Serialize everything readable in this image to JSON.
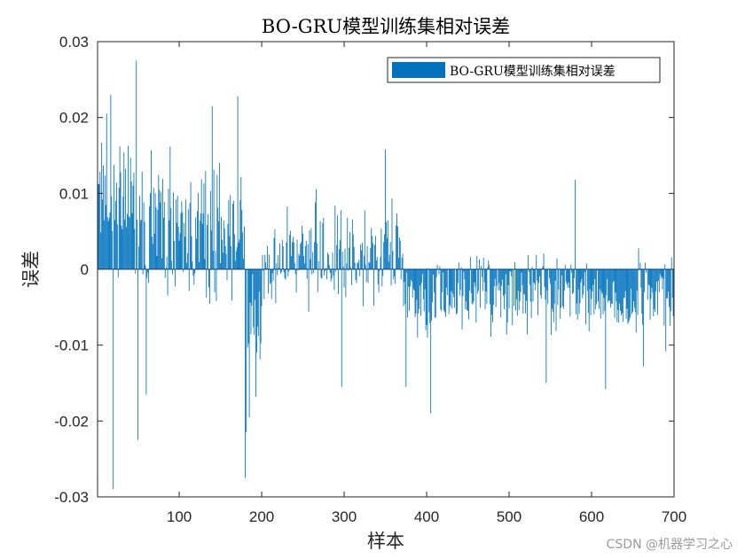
{
  "chart_data": {
    "type": "bar",
    "title": "BO-GRU模型训练集相对误差",
    "xlabel": "样本",
    "ylabel": "误差",
    "xlim": [
      1,
      700
    ],
    "ylim": [
      -0.03,
      0.03
    ],
    "xticks": [
      100,
      200,
      300,
      400,
      500,
      600,
      700
    ],
    "xtick_labels": [
      "100",
      "200",
      "300",
      "400",
      "500",
      "600",
      "700"
    ],
    "yticks": [
      -0.03,
      -0.02,
      -0.01,
      0,
      0.01,
      0.02,
      0.03
    ],
    "ytick_labels": [
      "-0.03",
      "-0.02",
      "-0.01",
      "0",
      "0.01",
      "0.02",
      "0.03"
    ],
    "legend": {
      "entries": [
        "BO-GRU模型训练集相对误差"
      ],
      "location": "top-right"
    },
    "bar_color": "#0072BD",
    "grid": false,
    "n_samples": 700,
    "series": [
      {
        "name": "BO-GRU模型训练集相对误差",
        "segments": [
          {
            "from": 1,
            "to": 45,
            "mean": 0.009,
            "spread": 0.011
          },
          {
            "from": 46,
            "to": 180,
            "mean": 0.005,
            "spread": 0.013
          },
          {
            "from": 181,
            "to": 200,
            "mean": -0.006,
            "spread": 0.012
          },
          {
            "from": 201,
            "to": 370,
            "mean": 0.002,
            "spread": 0.009
          },
          {
            "from": 371,
            "to": 700,
            "mean": -0.0035,
            "spread": 0.007
          }
        ],
        "peaks": [
          {
            "x": 20,
            "y": -0.029
          },
          {
            "x": 48,
            "y": 0.0275
          },
          {
            "x": 50,
            "y": -0.0225
          },
          {
            "x": 17,
            "y": 0.023
          },
          {
            "x": 12,
            "y": 0.0205
          },
          {
            "x": 60,
            "y": -0.0165
          },
          {
            "x": 171,
            "y": 0.0228
          },
          {
            "x": 140,
            "y": 0.0215
          },
          {
            "x": 180,
            "y": -0.0275
          },
          {
            "x": 181,
            "y": -0.0215
          },
          {
            "x": 185,
            "y": -0.0195
          },
          {
            "x": 193,
            "y": -0.0168
          },
          {
            "x": 350,
            "y": 0.0158
          },
          {
            "x": 297,
            "y": -0.0155
          },
          {
            "x": 375,
            "y": -0.0155
          },
          {
            "x": 405,
            "y": -0.019
          },
          {
            "x": 545,
            "y": -0.015
          },
          {
            "x": 580,
            "y": 0.0118
          },
          {
            "x": 617,
            "y": -0.0158
          },
          {
            "x": 663,
            "y": -0.0128
          },
          {
            "x": 690,
            "y": -0.0108
          }
        ]
      }
    ]
  },
  "watermark": "CSDN @机器学习之心"
}
